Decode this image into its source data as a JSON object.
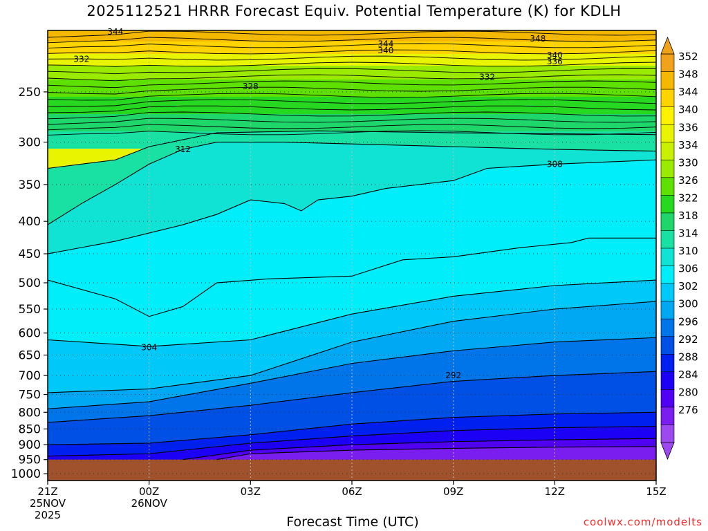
{
  "header": {
    "title": "2025112521 HRRR Forecast Equiv. Potential Temperature (K) for KDLH"
  },
  "footer": {
    "credit": "coolwx.com/modelts"
  },
  "chart_data": {
    "type": "contour",
    "title": "2025112521 HRRR Forecast Equiv. Potential Temperature (K) for KDLH",
    "xlabel": "Forecast Time (UTC)",
    "ylabel": "",
    "x_ticks": [
      {
        "lines": [
          "21Z",
          "25NOV",
          "2025"
        ]
      },
      {
        "lines": [
          "00Z",
          "26NOV"
        ]
      },
      {
        "lines": [
          "03Z"
        ]
      },
      {
        "lines": [
          "06Z"
        ]
      },
      {
        "lines": [
          "09Z"
        ]
      },
      {
        "lines": [
          "12Z"
        ]
      },
      {
        "lines": [
          "15Z"
        ]
      }
    ],
    "xlim_hours": [
      0,
      18
    ],
    "y_ticks": [
      250,
      300,
      350,
      400,
      450,
      500,
      550,
      600,
      650,
      700,
      750,
      800,
      850,
      900,
      950,
      1000
    ],
    "ylim_hPa": [
      200,
      1025
    ],
    "y_scale": "log-pressure",
    "ground_level_hPa": 950,
    "colorbar": {
      "labels": [
        352,
        348,
        344,
        340,
        336,
        334,
        330,
        326,
        322,
        318,
        314,
        310,
        306,
        302,
        300,
        296,
        292,
        288,
        284,
        280,
        276
      ],
      "colors": [
        "#f0a21a",
        "#f5b800",
        "#ffd400",
        "#fff200",
        "#e9f500",
        "#c8f000",
        "#9aeb00",
        "#5ee000",
        "#27d820",
        "#1ed66a",
        "#19e0a3",
        "#10e3d3",
        "#00eefa",
        "#00c8f8",
        "#00a8f4",
        "#0075ea",
        "#0050e6",
        "#0020f0",
        "#1c00f6",
        "#5000f2",
        "#7a1ef0",
        "#9c4af0"
      ],
      "extend": "both"
    },
    "contour_labels": [
      {
        "value": "344",
        "hour": 2.0,
        "p": 201
      },
      {
        "value": "332",
        "hour": 1.0,
        "p": 222
      },
      {
        "value": "344",
        "hour": 10.0,
        "p": 210
      },
      {
        "value": "340",
        "hour": 10.0,
        "p": 215
      },
      {
        "value": "348",
        "hour": 14.5,
        "p": 206
      },
      {
        "value": "340",
        "hour": 15.0,
        "p": 219
      },
      {
        "value": "336",
        "hour": 15.0,
        "p": 224
      },
      {
        "value": "328",
        "hour": 6.0,
        "p": 245
      },
      {
        "value": "332",
        "hour": 13.0,
        "p": 237
      },
      {
        "value": "312",
        "hour": 4.0,
        "p": 308
      },
      {
        "value": "308",
        "hour": 15.0,
        "p": 325
      },
      {
        "value": "304",
        "hour": 3.0,
        "p": 632
      },
      {
        "value": "292",
        "hour": 12.0,
        "p": 700
      }
    ],
    "isolines": [
      {
        "value": 276,
        "points": [
          [
            5.0,
            950
          ],
          [
            6.0,
            930
          ],
          [
            9.0,
            918
          ],
          [
            12.0,
            912
          ],
          [
            15.0,
            908
          ],
          [
            18.0,
            906
          ]
        ]
      },
      {
        "value": 280,
        "points": [
          [
            4.0,
            950
          ],
          [
            6.0,
            918
          ],
          [
            9.0,
            900
          ],
          [
            12.0,
            890
          ],
          [
            15.0,
            884
          ],
          [
            18.0,
            880
          ]
        ]
      },
      {
        "value": 284,
        "points": [
          [
            0,
            938
          ],
          [
            3.0,
            930
          ],
          [
            6.0,
            895
          ],
          [
            9.0,
            872
          ],
          [
            12.0,
            855
          ],
          [
            15.0,
            846
          ],
          [
            18.0,
            842
          ]
        ]
      },
      {
        "value": 288,
        "points": [
          [
            0,
            900
          ],
          [
            3.0,
            895
          ],
          [
            6.0,
            868
          ],
          [
            9.0,
            835
          ],
          [
            12.0,
            815
          ],
          [
            15.0,
            805
          ],
          [
            18.0,
            800
          ]
        ]
      },
      {
        "value": 292,
        "points": [
          [
            0,
            830
          ],
          [
            3.0,
            810
          ],
          [
            6.0,
            780
          ],
          [
            9.0,
            745
          ],
          [
            12.0,
            715
          ],
          [
            15.0,
            700
          ],
          [
            18.0,
            690
          ]
        ]
      },
      {
        "value": 296,
        "points": [
          [
            0,
            790
          ],
          [
            3.0,
            770
          ],
          [
            6.0,
            720
          ],
          [
            9.0,
            670
          ],
          [
            12.0,
            640
          ],
          [
            15.0,
            620
          ],
          [
            18.0,
            610
          ]
        ]
      },
      {
        "value": 300,
        "points": [
          [
            0,
            745
          ],
          [
            3.0,
            735
          ],
          [
            6.0,
            700
          ],
          [
            9.0,
            620
          ],
          [
            12.0,
            575
          ],
          [
            15.0,
            550
          ],
          [
            18.0,
            535
          ]
        ]
      },
      {
        "value": 304,
        "points": [
          [
            0,
            615
          ],
          [
            3.0,
            630
          ],
          [
            6.0,
            615
          ],
          [
            9.0,
            560
          ],
          [
            12.0,
            525
          ],
          [
            15.0,
            505
          ],
          [
            18.0,
            495
          ]
        ]
      },
      {
        "value": 306,
        "points": [
          [
            0,
            495
          ],
          [
            2.0,
            530
          ],
          [
            3.0,
            565
          ],
          [
            4.0,
            545
          ],
          [
            5.0,
            500
          ],
          [
            6.5,
            493
          ],
          [
            9.0,
            488
          ],
          [
            10.5,
            460
          ],
          [
            12.0,
            455
          ],
          [
            14.0,
            440
          ],
          [
            15.5,
            432
          ],
          [
            16.0,
            425
          ],
          [
            18.0,
            425
          ]
        ]
      },
      {
        "value": 308,
        "points": [
          [
            0,
            450
          ],
          [
            2.0,
            430
          ],
          [
            4.0,
            405
          ],
          [
            5.0,
            390
          ],
          [
            6.0,
            370
          ],
          [
            7.0,
            375
          ],
          [
            7.5,
            385
          ],
          [
            8.0,
            370
          ],
          [
            9.0,
            365
          ],
          [
            10.0,
            355
          ],
          [
            12.0,
            345
          ],
          [
            13.0,
            330
          ],
          [
            15.0,
            325
          ],
          [
            18.0,
            320
          ]
        ]
      },
      {
        "value": 312,
        "points": [
          [
            0,
            405
          ],
          [
            1.0,
            375
          ],
          [
            2.0,
            350
          ],
          [
            3.0,
            325
          ],
          [
            4.0,
            308
          ],
          [
            5.0,
            300
          ],
          [
            7.0,
            300
          ],
          [
            9.0,
            302
          ],
          [
            12.0,
            305
          ],
          [
            15.0,
            308
          ],
          [
            18.0,
            310
          ]
        ]
      },
      {
        "value": 316,
        "points": [
          [
            0,
            330
          ],
          [
            2.0,
            320
          ],
          [
            3.0,
            305
          ],
          [
            5.0,
            290
          ],
          [
            8.0,
            288
          ],
          [
            12.0,
            290
          ],
          [
            18.0,
            292
          ]
        ]
      }
    ]
  }
}
